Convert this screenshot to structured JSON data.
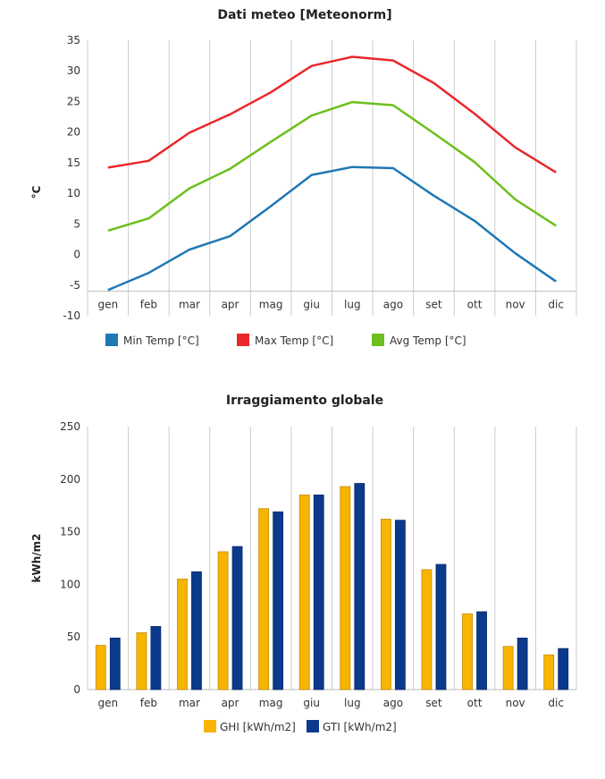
{
  "chart_data": [
    {
      "type": "line",
      "title": "Dati meteo [Meteonorm]",
      "xlabel": "",
      "ylabel": "°C",
      "categories": [
        "gen",
        "feb",
        "mar",
        "apr",
        "mag",
        "giu",
        "lug",
        "ago",
        "set",
        "ott",
        "nov",
        "dic"
      ],
      "ylim": [
        -10,
        35
      ],
      "yticks": [
        35,
        30,
        25,
        20,
        15,
        10,
        5,
        0,
        -5,
        -10
      ],
      "grid": true,
      "legend_position": "bottom",
      "series": [
        {
          "name": "Min Temp [°C]",
          "color": "#1f77b4",
          "values": [
            -5.8,
            -3.0,
            0.8,
            3.0,
            7.9,
            13.0,
            14.3,
            14.1,
            9.6,
            5.5,
            0.2,
            -4.4
          ]
        },
        {
          "name": "Max Temp [°C]",
          "color": "#e8282b",
          "values": [
            14.2,
            15.3,
            19.9,
            22.9,
            26.5,
            30.8,
            32.3,
            31.7,
            28.0,
            23.0,
            17.5,
            13.4
          ]
        },
        {
          "name": "Avg Temp [°C]",
          "color": "#6cbf1c",
          "values": [
            3.9,
            5.9,
            10.8,
            14.0,
            18.4,
            22.7,
            24.9,
            24.4,
            19.8,
            15.1,
            9.0,
            4.7
          ]
        }
      ]
    },
    {
      "type": "bar",
      "title": "Irraggiamento globale",
      "xlabel": "",
      "ylabel": "kWh/m2",
      "categories": [
        "gen",
        "feb",
        "mar",
        "apr",
        "mag",
        "giu",
        "lug",
        "ago",
        "set",
        "ott",
        "nov",
        "dic"
      ],
      "ylim": [
        0,
        250
      ],
      "yticks": [
        250,
        200,
        150,
        100,
        50,
        0
      ],
      "grid": true,
      "legend_position": "bottom",
      "series": [
        {
          "name": "GHI [kWh/m2]",
          "color": "#f7b500",
          "edge": "#c58a00",
          "values": [
            42,
            54,
            105,
            131,
            172,
            185,
            193,
            162,
            114,
            72,
            41,
            33
          ]
        },
        {
          "name": "GTI [kWh/m2]",
          "color": "#0b3a8c",
          "edge": "#072a68",
          "values": [
            49,
            60,
            112,
            136,
            169,
            185,
            196,
            161,
            119,
            74,
            49,
            39
          ]
        }
      ]
    }
  ]
}
